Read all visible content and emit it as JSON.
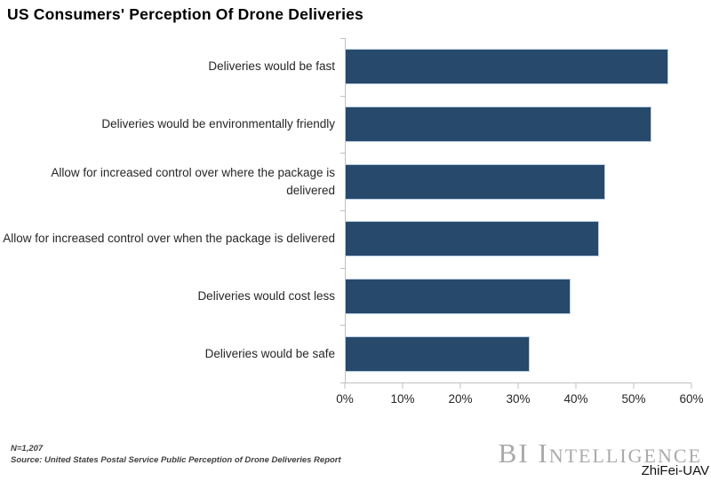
{
  "chart_data": {
    "type": "bar",
    "orientation": "horizontal",
    "title": "US Consumers' Perception Of Drone Deliveries",
    "categories": [
      "Deliveries would be fast",
      "Deliveries would be environmentally friendly",
      "Allow for increased control over where the package is delivered",
      "Allow for increased control over when the package is delivered",
      "Deliveries would cost less",
      "Deliveries would be safe"
    ],
    "values": [
      56,
      53,
      45,
      44,
      39,
      32
    ],
    "unit": "%",
    "xlim": [
      0,
      60
    ],
    "x_ticks": [
      "0%",
      "10%",
      "20%",
      "30%",
      "40%",
      "50%",
      "60%"
    ],
    "xlabel": "",
    "ylabel": "",
    "grid": false,
    "legend": "none",
    "bar_color": "#27496b",
    "bar_border_color": "#b9cde5",
    "axis_color": "#c0c0c0"
  },
  "footer": {
    "sample_note": "N=1,207",
    "source_note": "Source: United States Postal Service Public Perception of Drone Deliveries Report",
    "logo_text": "BI Intelligence",
    "watermark": "ZhiFei-UAV"
  }
}
